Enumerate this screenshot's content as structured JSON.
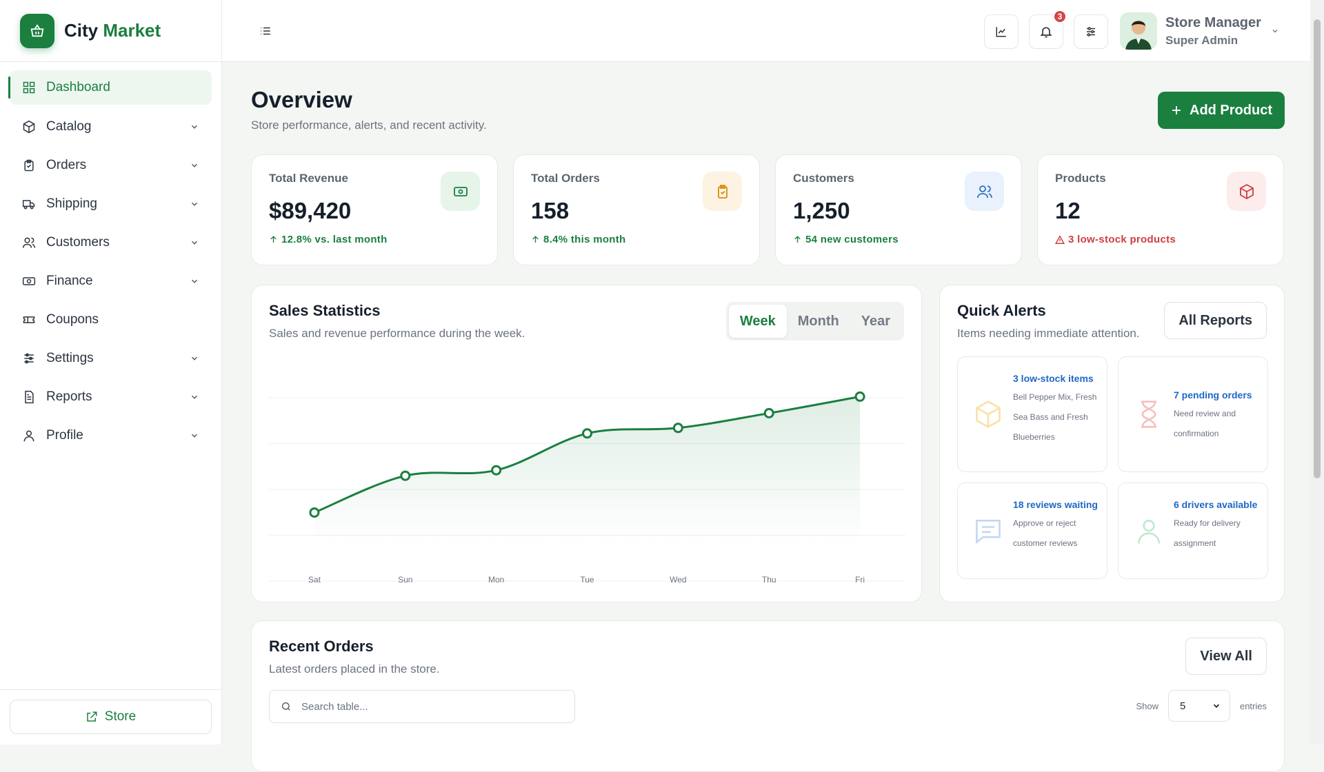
{
  "sidebar": {
    "brand": {
      "first": "City",
      "second": "Market"
    },
    "nav": [
      "Dashboard",
      "Catalog",
      "Orders",
      "Shipping",
      "Customers",
      "Finance",
      "Coupons",
      "Settings",
      "Reports",
      "Profile"
    ],
    "store_button": "Store"
  },
  "header": {
    "notification_count": 3,
    "user": {
      "name": "Store Manager",
      "role": "Super Admin"
    }
  },
  "overview": {
    "title": "Overview",
    "subtitle": "Store performance, alerts, and recent activity.",
    "add_button": "Add Product"
  },
  "stats": [
    {
      "label": "Total Revenue",
      "value": "$89,420",
      "note": "12.8% vs. last month"
    },
    {
      "label": "Total Orders",
      "value": "158",
      "note": "8.4% this month"
    },
    {
      "label": "Customers",
      "value": "1,250",
      "note": "54 new customers"
    },
    {
      "label": "Products",
      "value": "12",
      "note": "3 low-stock products"
    }
  ],
  "sales_tabs": [
    "Week",
    "Month",
    "Year"
  ],
  "chart_data": {
    "type": "line",
    "title": "Sales Statistics",
    "subtitle": "Sales and revenue performance during the week.",
    "categories": [
      "Sat",
      "Sun",
      "Mon",
      "Tue",
      "Wed",
      "Thu",
      "Fri"
    ],
    "values": [
      17,
      37,
      40,
      60,
      63,
      71,
      80
    ],
    "ylim": [
      0,
      100
    ],
    "color": "#1a7f3f",
    "grid": true
  },
  "alerts": {
    "title": "Quick Alerts",
    "subtitle": "Items needing immediate attention.",
    "button": "All Reports",
    "items": [
      {
        "title": "3 low-stock items",
        "text": "Bell Pepper Mix, Fresh Sea Bass and Fresh Blueberries"
      },
      {
        "title": "7 pending orders",
        "text": "Need review and confirmation"
      },
      {
        "title": "18 reviews waiting",
        "text": "Approve or reject customer reviews"
      },
      {
        "title": "6 drivers available",
        "text": "Ready for delivery assignment"
      }
    ]
  },
  "recent_orders": {
    "title": "Recent Orders",
    "subtitle": "Latest orders placed in the store.",
    "button": "View All",
    "search_placeholder": "Search table...",
    "show_label": "Show",
    "entries_value": 5,
    "entries_label": "entries"
  }
}
